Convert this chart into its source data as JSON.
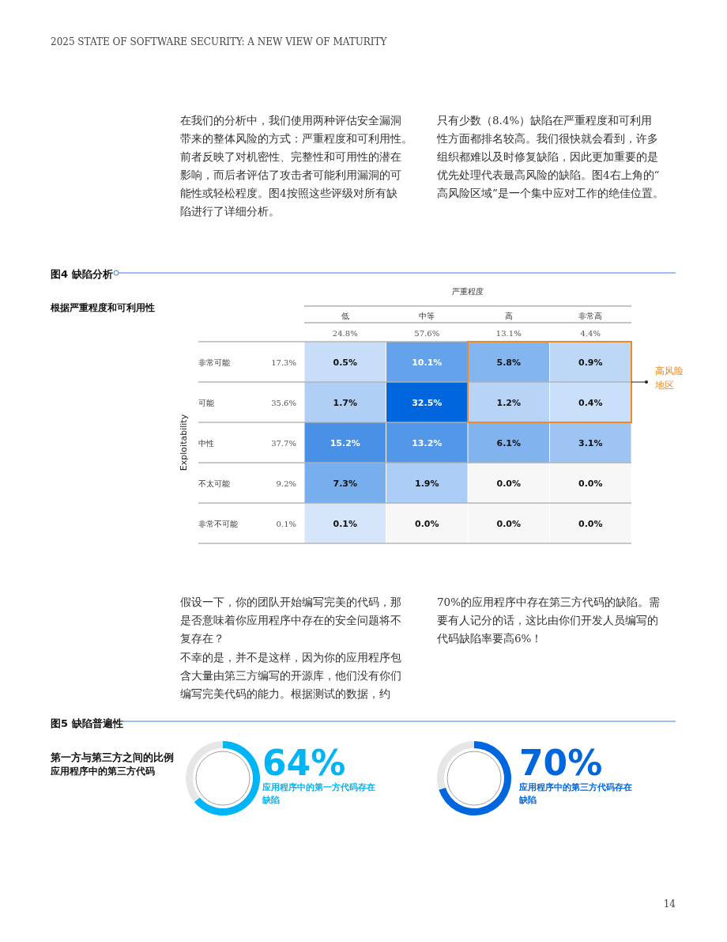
{
  "chart_data": [
    {
      "type": "heatmap",
      "subtitle": "根据严重程度和可利用性",
      "xlabel": "严重程度",
      "ylabel": "Exploitability",
      "categories": [
        "低",
        "中等",
        "高",
        "非常高"
      ],
      "y_categories": [
        "非常可能",
        "可能",
        "中性",
        "不太可能",
        "非常不可能"
      ],
      "y2_categories": [
        "17.3%",
        "35.6%",
        "37.7%",
        "9.2%",
        "0.1%"
      ],
      "cells": [
        [
          0.5,
          10.1,
          5.8,
          0.9
        ],
        [
          1.7,
          32.5,
          1.2,
          0.4
        ],
        [
          15.2,
          13.2,
          6.1,
          3.1
        ],
        [
          7.3,
          1.9,
          0.0,
          0.0
        ],
        [
          0.1,
          0.0,
          0.0,
          0.0
        ]
      ],
      "cell_labels": [
        [
          "0.5%",
          "10.1%",
          "5.8%",
          "0.9%"
        ],
        [
          "1.7%",
          "32.5%",
          "1.2%",
          "0.4%"
        ],
        [
          "15.2%",
          "13.2%",
          "6.1%",
          "3.1%"
        ],
        [
          "7.3%",
          "1.9%",
          "0.0%",
          "0.0%"
        ],
        [
          "0.1%",
          "0.0%",
          "0.0%",
          "0.0%"
        ]
      ],
      "annotations": [
        "2025 STATE OF SOFTWARE SECURITY: A NEW VIEW OF MATURITY",
        "在我们的分析中，我们使用两种评估安全漏洞带来的整体风险的方式：严重程度和可利用性。前者反映了对机密性、完整性和可用性的潜在影响，而后者评估了攻击者可能利用漏洞的可能性或轻松程度。图4按照这些评级对所有缺陷进行了详细分析。",
        "只有少数（8.4%）缺陷在严重程度和可利用性方面都排名较高。我们很快就会看到，许多组织都难以及时修复缺陷，因此更加重要的是优先处理代表最高风险的缺陷。图4右上角的“高风险区域”是一个集中应对工作的绝佳位置。",
        "24.8%",
        "57.6%",
        "13.1%",
        "4.4%",
        "高风险地区",
        "图4 缺陷分析"
      ]
    },
    {
      "type": "donut",
      "title": "图5 缺陷普遍性",
      "subtitle": "第一方与第三方之间的比例",
      "categories": [
        "应用程序中的第一方代码存在缺陷",
        null
      ],
      "values": [
        64,
        36
      ],
      "colors": [
        "#00b5f5",
        "#e6e6e6"
      ],
      "value_labels": [
        "64%",
        null
      ],
      "annotations": [
        "应用程序中的第三方代码",
        "假设一下，你的团队开始编写完美的代码，那是否意味着你应用程序中存在的安全问题将不复存在？",
        "不幸的是，并不是这样，因为你的应用程序包含大量由第三方编写的开源库，他们没有你们编写完美代码的能力。根据测试的数据，约70%的应用程序中存在第三方代码的缺陷。需要有人记分的话，这比由你们开发人员编写的代码缺陷率要高6%！"
      ]
    },
    {
      "type": "donut",
      "categories": [
        "应用程序中的第三方代码存在缺陷",
        null
      ],
      "values": [
        70,
        30
      ],
      "colors": [
        "#0066dd",
        "#e6e6e6"
      ],
      "value_labels": [
        "70%",
        null
      ],
      "annotations": [
        "14"
      ]
    }
  ]
}
